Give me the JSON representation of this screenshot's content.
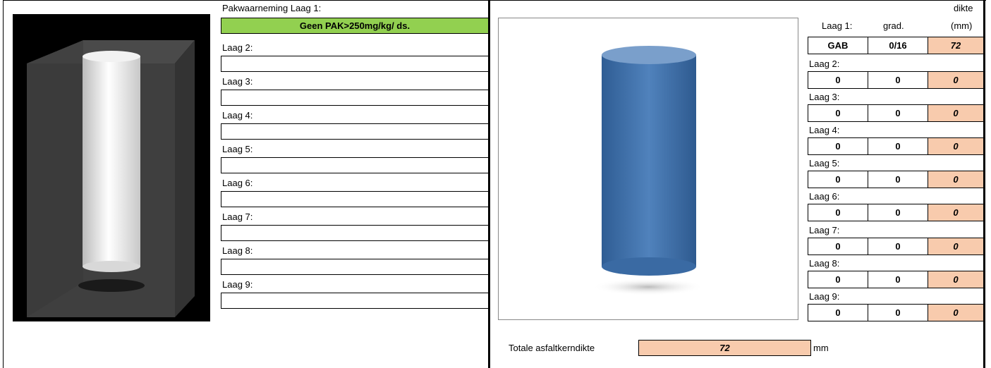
{
  "left": {
    "title": "Pakwaarneming Laag 1:",
    "layer1_result": "Geen PAK>250mg/kg/ ds.",
    "layers": [
      "Laag 2:",
      "Laag 3:",
      "Laag 4:",
      "Laag 5:",
      "Laag 6:",
      "Laag 7:",
      "Laag 8:",
      "Laag 9:"
    ]
  },
  "right": {
    "header": {
      "dikte": "dikte",
      "unit": "(mm)",
      "grade": "grad."
    },
    "rows": [
      {
        "label": "Laag 1:",
        "material": "GAB",
        "grade": "0/16",
        "thickness": 72
      },
      {
        "label": "Laag 2:",
        "material": 0,
        "grade": 0,
        "thickness": 0
      },
      {
        "label": "Laag 3:",
        "material": 0,
        "grade": 0,
        "thickness": 0
      },
      {
        "label": "Laag 4:",
        "material": 0,
        "grade": 0,
        "thickness": 0
      },
      {
        "label": "Laag 5:",
        "material": 0,
        "grade": 0,
        "thickness": 0
      },
      {
        "label": "Laag 6:",
        "material": 0,
        "grade": 0,
        "thickness": 0
      },
      {
        "label": "Laag 7:",
        "material": 0,
        "grade": 0,
        "thickness": 0
      },
      {
        "label": "Laag 8:",
        "material": 0,
        "grade": 0,
        "thickness": 0
      },
      {
        "label": "Laag 9:",
        "material": 0,
        "grade": 0,
        "thickness": 0
      }
    ]
  },
  "total": {
    "label": "Totale asfaltkerndikte",
    "value": 72,
    "unit": "mm"
  }
}
